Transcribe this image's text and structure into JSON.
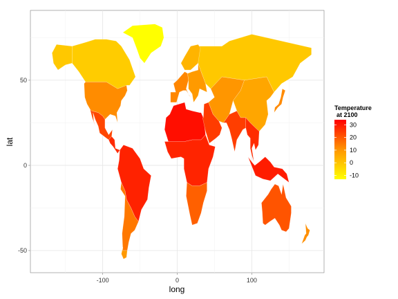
{
  "chart_data": {
    "type": "map",
    "xlabel": "long",
    "ylabel": "lat",
    "x_ticks": [
      -100,
      0,
      100
    ],
    "y_ticks": [
      -50,
      0,
      50
    ],
    "xlim": [
      -197,
      197
    ],
    "ylim": [
      -63,
      91
    ],
    "grid": true,
    "legend": {
      "title_line1": "Temperature",
      "title_line2": "at 2100",
      "placement": "right",
      "breaks": [
        30,
        20,
        10,
        0,
        -10
      ],
      "range": [
        -13,
        34
      ],
      "color_low": "#ffff00",
      "color_high": "#ff0000"
    },
    "regions": [
      {
        "name": "Greenland",
        "temp": -12,
        "color": "#ffff00"
      },
      {
        "name": "Canada",
        "temp": 2,
        "color": "#ffcc00"
      },
      {
        "name": "Alaska",
        "temp": 3,
        "color": "#ffc800"
      },
      {
        "name": "Russia",
        "temp": 2,
        "color": "#ffc800"
      },
      {
        "name": "Scandinavia",
        "temp": 5,
        "color": "#ffb400"
      },
      {
        "name": "United States",
        "temp": 15,
        "color": "#ff8c00"
      },
      {
        "name": "Mexico",
        "temp": 26,
        "color": "#ff4600"
      },
      {
        "name": "Central America",
        "temp": 30,
        "color": "#ff2a00"
      },
      {
        "name": "Brazil",
        "temp": 29,
        "color": "#ff2200"
      },
      {
        "name": "Andes / Argentina",
        "temp": 18,
        "color": "#ff7800"
      },
      {
        "name": "Patagonia",
        "temp": 12,
        "color": "#ff9900"
      },
      {
        "name": "Western Europe",
        "temp": 15,
        "color": "#ff8600"
      },
      {
        "name": "Eastern Europe",
        "temp": 12,
        "color": "#ff9a00"
      },
      {
        "name": "Sahara",
        "temp": 31,
        "color": "#ff0e00"
      },
      {
        "name": "Central Africa",
        "temp": 28,
        "color": "#ff2400"
      },
      {
        "name": "Southern Africa",
        "temp": 21,
        "color": "#ff6000"
      },
      {
        "name": "Middle East",
        "temp": 27,
        "color": "#ff3c00"
      },
      {
        "name": "Central Asia",
        "temp": 13,
        "color": "#ff9600"
      },
      {
        "name": "China",
        "temp": 9,
        "color": "#ffa600"
      },
      {
        "name": "India",
        "temp": 27,
        "color": "#ff3e00"
      },
      {
        "name": "Southeast Asia",
        "temp": 28,
        "color": "#ff2c00"
      },
      {
        "name": "Indonesia",
        "temp": 30,
        "color": "#ff1c00"
      },
      {
        "name": "Japan",
        "temp": 15,
        "color": "#ff8a00"
      },
      {
        "name": "Australia",
        "temp": 22,
        "color": "#ff5400"
      },
      {
        "name": "New Zealand",
        "temp": 14,
        "color": "#ff8f00"
      }
    ]
  }
}
